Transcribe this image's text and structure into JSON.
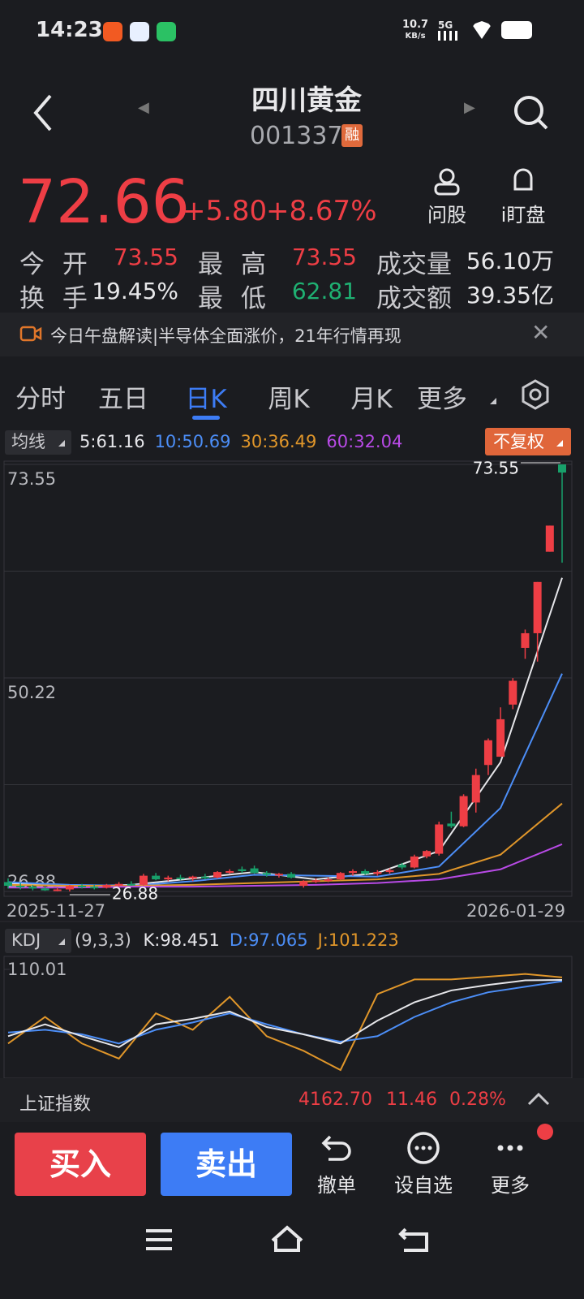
{
  "status": {
    "time": "14:23",
    "speed": "10.7",
    "speed_unit": "KB/s",
    "network": "5G"
  },
  "header": {
    "title": "四川黄金",
    "code": "001337",
    "badge": "融"
  },
  "quote": {
    "price": "72.66",
    "change": "+5.80",
    "change_pct": "+8.67%"
  },
  "actions": [
    "问股",
    "i盯盘"
  ],
  "stats": {
    "rows": [
      [
        "今 开",
        "73.55",
        "最 高",
        "73.55",
        "成交量",
        "56.10万"
      ],
      [
        "换 手",
        "19.45%",
        "最 低",
        "62.81",
        "成交额",
        "39.35亿"
      ]
    ]
  },
  "banner": "今日午盘解读|半导体全面涨价，21年行情再现",
  "tabs": {
    "items": [
      "分时",
      "五日",
      "日K",
      "周K",
      "月K",
      "更多"
    ],
    "active": 2
  },
  "chart_data": [
    {
      "type": "candlestick",
      "indicator": "均线",
      "adjust": "不复权",
      "up_color": "#ee3e45",
      "down_color": "#18a06a",
      "ylim": [
        26.88,
        73.55
      ],
      "yticks": [
        73.55,
        50.22,
        26.88
      ],
      "x_labels": [
        "2025-11-27",
        "2026-01-29"
      ],
      "candles": [
        {
          "open": 27.9,
          "high": 28.3,
          "low": 27.2,
          "close": 27.5
        },
        {
          "open": 27.5,
          "high": 27.8,
          "low": 27.1,
          "close": 27.4
        },
        {
          "open": 27.4,
          "high": 27.6,
          "low": 27.0,
          "close": 27.2
        },
        {
          "open": 27.2,
          "high": 27.4,
          "low": 26.95,
          "close": 27.0
        },
        {
          "open": 27.0,
          "high": 27.3,
          "low": 26.9,
          "close": 27.1
        },
        {
          "open": 27.1,
          "high": 27.6,
          "low": 26.88,
          "close": 27.5
        },
        {
          "open": 27.5,
          "high": 27.7,
          "low": 27.2,
          "close": 27.4
        },
        {
          "open": 27.4,
          "high": 27.6,
          "low": 27.1,
          "close": 27.3
        },
        {
          "open": 27.3,
          "high": 27.7,
          "low": 27.2,
          "close": 27.6
        },
        {
          "open": 27.6,
          "high": 27.9,
          "low": 27.4,
          "close": 27.7
        },
        {
          "open": 27.7,
          "high": 28.0,
          "low": 27.5,
          "close": 27.6
        },
        {
          "open": 27.6,
          "high": 28.8,
          "low": 27.5,
          "close": 28.6
        },
        {
          "open": 28.6,
          "high": 28.9,
          "low": 28.1,
          "close": 28.2
        },
        {
          "open": 28.2,
          "high": 28.6,
          "low": 28.0,
          "close": 28.4
        },
        {
          "open": 28.4,
          "high": 28.7,
          "low": 28.1,
          "close": 28.3
        },
        {
          "open": 28.3,
          "high": 28.6,
          "low": 28.0,
          "close": 28.5
        },
        {
          "open": 28.5,
          "high": 28.8,
          "low": 28.2,
          "close": 28.4
        },
        {
          "open": 28.4,
          "high": 29.1,
          "low": 28.3,
          "close": 29.0
        },
        {
          "open": 29.0,
          "high": 29.3,
          "low": 28.8,
          "close": 29.1
        },
        {
          "open": 29.3,
          "high": 29.6,
          "low": 28.9,
          "close": 29.1
        },
        {
          "open": 29.4,
          "high": 29.7,
          "low": 28.8,
          "close": 28.9
        },
        {
          "open": 28.9,
          "high": 29.1,
          "low": 28.5,
          "close": 28.7
        },
        {
          "open": 28.7,
          "high": 28.9,
          "low": 28.4,
          "close": 28.8
        },
        {
          "open": 28.8,
          "high": 29.0,
          "low": 28.3,
          "close": 28.4
        },
        {
          "open": 27.5,
          "high": 28.1,
          "low": 27.3,
          "close": 28.0
        },
        {
          "open": 28.0,
          "high": 28.3,
          "low": 27.8,
          "close": 28.1
        },
        {
          "open": 28.1,
          "high": 28.4,
          "low": 27.9,
          "close": 28.2
        },
        {
          "open": 28.2,
          "high": 29.0,
          "low": 28.1,
          "close": 28.9
        },
        {
          "open": 28.9,
          "high": 29.3,
          "low": 28.6,
          "close": 29.1
        },
        {
          "open": 29.1,
          "high": 29.3,
          "low": 28.7,
          "close": 28.8
        },
        {
          "open": 28.8,
          "high": 29.2,
          "low": 28.6,
          "close": 29.0
        },
        {
          "open": 29.0,
          "high": 29.4,
          "low": 28.8,
          "close": 29.2
        },
        {
          "open": 29.8,
          "high": 30.0,
          "low": 29.3,
          "close": 29.5
        },
        {
          "open": 29.5,
          "high": 30.9,
          "low": 29.4,
          "close": 30.7
        },
        {
          "open": 30.7,
          "high": 31.4,
          "low": 30.5,
          "close": 31.3
        },
        {
          "open": 31.0,
          "high": 34.5,
          "low": 30.8,
          "close": 34.2
        },
        {
          "open": 34.3,
          "high": 35.6,
          "low": 33.8,
          "close": 34.0
        },
        {
          "open": 34.0,
          "high": 37.5,
          "low": 33.9,
          "close": 37.3
        },
        {
          "open": 36.6,
          "high": 40.3,
          "low": 35.5,
          "close": 39.6
        },
        {
          "open": 40.7,
          "high": 43.6,
          "low": 39.6,
          "close": 43.4
        },
        {
          "open": 41.6,
          "high": 47.0,
          "low": 41.6,
          "close": 45.7
        },
        {
          "open": 47.3,
          "high": 50.2,
          "low": 46.8,
          "close": 49.9
        },
        {
          "open": 53.5,
          "high": 55.5,
          "low": 52.3,
          "close": 55.1
        },
        {
          "open": 55.1,
          "high": 60.7,
          "low": 52.0,
          "close": 60.7
        },
        {
          "open": 64.0,
          "high": 66.86,
          "low": 64.0,
          "close": 66.86
        },
        {
          "open": 73.55,
          "high": 73.55,
          "low": 62.81,
          "close": 72.66
        }
      ],
      "ma": {
        "x": [
          0,
          5,
          10,
          15,
          20,
          25,
          30,
          35,
          40,
          45
        ],
        "series": [
          {
            "name": "5:",
            "color": "#e6e6ea",
            "values": [
              27.8,
              27.4,
              27.6,
              28.3,
              29.0,
              28.2,
              28.9,
              31.3,
              41.0,
              61.16
            ]
          },
          {
            "name": "10:",
            "color": "#4c8ef7",
            "values": [
              27.9,
              27.6,
              27.5,
              28.0,
              28.7,
              28.6,
              28.5,
              29.6,
              36.0,
              50.69
            ]
          },
          {
            "name": "30:",
            "color": "#e0962a",
            "values": [
              27.6,
              27.5,
              27.5,
              27.6,
              27.8,
              28.0,
              28.2,
              28.8,
              30.9,
              36.49
            ]
          },
          {
            "name": "60:",
            "color": "#b84ae6",
            "values": [
              27.3,
              27.3,
              27.4,
              27.4,
              27.5,
              27.6,
              27.8,
              28.2,
              29.3,
              32.04
            ]
          }
        ]
      }
    },
    {
      "type": "line",
      "indicator": "KDJ",
      "params": "(9,3,3)",
      "ylim": [
        -8,
        110.01
      ],
      "yticks": [
        110.01
      ],
      "x": [
        0,
        3,
        6,
        9,
        12,
        15,
        18,
        21,
        24,
        27,
        30,
        33,
        36,
        39,
        42,
        45
      ],
      "series": [
        {
          "name": "K:",
          "color": "#e6e6ea",
          "values": [
            37,
            50,
            37,
            25,
            50,
            56,
            64,
            47,
            39,
            29,
            54,
            74,
            87,
            93,
            98,
            98.451
          ]
        },
        {
          "name": "D:",
          "color": "#4c8ef7",
          "values": [
            41,
            44,
            39,
            29,
            44,
            52,
            62,
            50,
            39,
            31,
            37,
            58,
            74,
            85,
            91,
            97.065
          ]
        },
        {
          "name": "J:",
          "color": "#e0962a",
          "values": [
            29,
            58,
            29,
            12.5,
            62,
            44,
            80,
            37,
            21,
            0,
            83,
            99,
            99,
            102,
            105,
            101.223
          ]
        }
      ]
    }
  ],
  "index_bar": {
    "name": "上证指数",
    "value": "4162.70",
    "change": "11.46",
    "pct": "0.28%"
  },
  "bottom": {
    "buy": "买入",
    "sell": "卖出",
    "actions": [
      "撤单",
      "设自选",
      "更多"
    ]
  }
}
